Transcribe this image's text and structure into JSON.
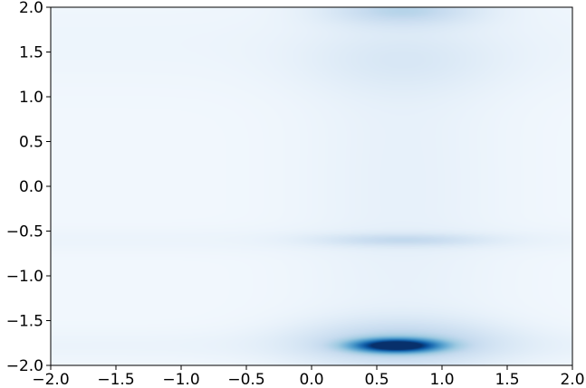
{
  "chart_data": {
    "type": "heatmap",
    "title": "",
    "xlabel": "",
    "ylabel": "",
    "xlim": [
      -2.0,
      2.0
    ],
    "ylim": [
      -2.0,
      2.0
    ],
    "grid": false,
    "colormap": "Blues",
    "x_ticks": [
      "−2.0",
      "−1.5",
      "−1.0",
      "−0.5",
      "0.0",
      "0.5",
      "1.0",
      "1.5",
      "2.0"
    ],
    "y_ticks": [
      "−2.0",
      "−1.5",
      "−1.0",
      "−0.5",
      "0.0",
      "0.5",
      "1.0",
      "1.5",
      "2.0"
    ],
    "x_tick_values": [
      -2.0,
      -1.5,
      -1.0,
      -0.5,
      0.0,
      0.5,
      1.0,
      1.5,
      2.0
    ],
    "y_tick_values": [
      -2.0,
      -1.5,
      -1.0,
      -0.5,
      0.0,
      0.5,
      1.0,
      1.5,
      2.0
    ],
    "background_level": 0.03,
    "hotspots": [
      {
        "x": 0.65,
        "y": -1.78,
        "sx": 0.22,
        "sy": 0.05,
        "intensity": 0.98
      },
      {
        "x": 0.68,
        "y": -1.75,
        "sx": 0.55,
        "sy": 0.18,
        "intensity": 0.25
      },
      {
        "x": 0.7,
        "y": -0.6,
        "sx": 0.45,
        "sy": 0.05,
        "intensity": 0.16
      },
      {
        "x": 0.7,
        "y": 1.97,
        "sx": 0.4,
        "sy": 0.12,
        "intensity": 0.22
      },
      {
        "x": 0.7,
        "y": 1.4,
        "sx": 0.55,
        "sy": 0.25,
        "intensity": 0.07
      },
      {
        "x": 0.7,
        "y": 0.0,
        "sx": 0.55,
        "sy": 2.2,
        "intensity": 0.05
      }
    ],
    "bands": [
      {
        "y": -1.78,
        "sy": 0.12,
        "intensity": 0.03
      },
      {
        "y": -0.6,
        "sy": 0.1,
        "intensity": 0.025
      },
      {
        "y": 1.6,
        "sy": 0.35,
        "intensity": 0.02
      }
    ]
  }
}
